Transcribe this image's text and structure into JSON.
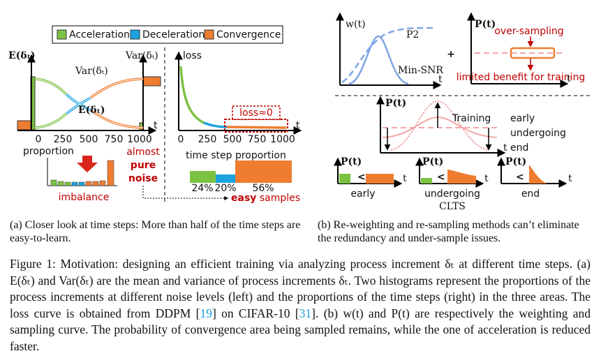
{
  "panel_a": {
    "legend": [
      "Acceleration",
      "Deceleration",
      "Convergence"
    ],
    "left_plot": {
      "y_label_left": "E(δₜ)",
      "y_label_right": "Var(δₜ)",
      "curve_var": "Var(δₜ)",
      "curve_mean": "E(δₜ)",
      "x_ticks": [
        "0",
        "250",
        "500",
        "750",
        "1000"
      ],
      "x_label": "t"
    },
    "right_plot": {
      "y_label": "loss",
      "x_ticks": [
        "0",
        "250",
        "500",
        "750",
        "1000"
      ],
      "x_label": "t",
      "annotation": "loss≈0"
    },
    "histogram_left": {
      "y_label": "proportion",
      "label": "imbalance",
      "note": [
        "almost",
        "pure",
        "noise"
      ]
    },
    "histogram_right": {
      "title": "time step proportion",
      "percentages": [
        "24%",
        "20%",
        "56%"
      ],
      "note_bold": "easy",
      "note": "samples"
    }
  },
  "panel_b": {
    "weight_plot": {
      "y_label": "w(t)",
      "curve_1": "P2",
      "curve_2": "Min-SNR",
      "x_label": "t"
    },
    "plus": "+",
    "sampling_plot": {
      "y_label": "P(t)",
      "note_top": "over-sampling",
      "note_bottom": "limited benefit for training",
      "x_label": "t"
    },
    "training_plot": {
      "y_label": "P(t)",
      "label": "Training",
      "stages": [
        "early",
        "undergoing",
        "end"
      ],
      "x_label": "t"
    },
    "small_plots": [
      {
        "y_label": "P(t)",
        "sign": "<",
        "label": "early",
        "x_label": "t"
      },
      {
        "y_label": "P(t)",
        "sign": "<",
        "label": "undergoing",
        "method": "CLTS",
        "x_label": "t"
      },
      {
        "y_label": "P(t)",
        "sign": "<",
        "label": "end",
        "x_label": "t"
      }
    ]
  },
  "subcaptions": {
    "a": "(a) Closer look at time steps: More than half of the time steps are easy-to-learn.",
    "b": "(b) Re-weighting and re-sampling methods can’t eliminate the redundancy and under-sample issues."
  },
  "caption": [
    "Figure 1: Motivation: designing an efficient training via analyzing process increment δₜ at different time steps. (a) E(δₜ) and Var(δₜ) are the mean and variance of process increments δₜ. Two histograms represent the proportions of the process increments at different noise levels (left) and the proportions of the time steps (right) in the three areas. The loss curve is obtained from DDPM [",
    "19",
    "] on CIFAR-10 [",
    "31",
    "]. (b) w(t) and P(t) are respectively the weighting and sampling curve. The probability of convergence area being sampled remains, while the one of acceleration is reduced faster."
  ]
}
